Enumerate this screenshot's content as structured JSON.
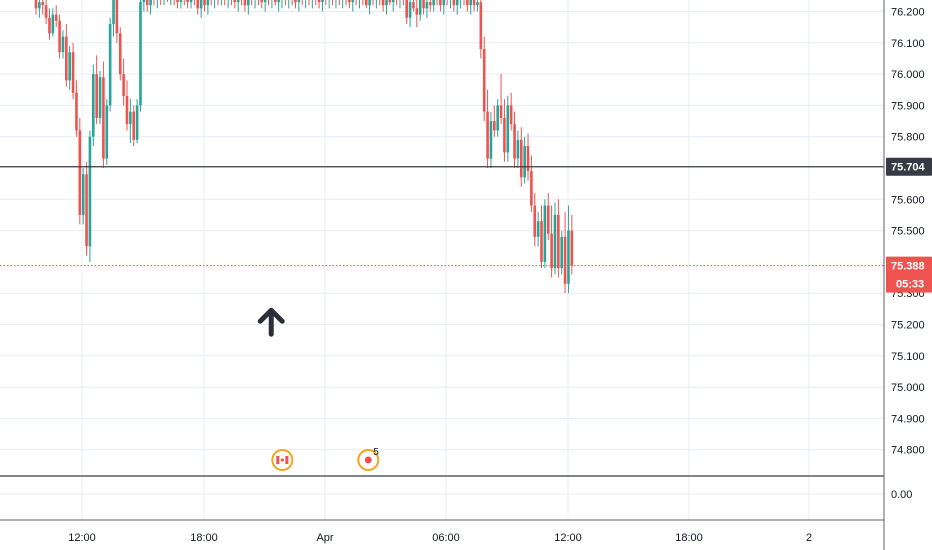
{
  "chart_data": {
    "type": "candlestick",
    "y_ticks": [
      "76.200",
      "76.100",
      "76.000",
      "75.900",
      "75.800",
      "75.600",
      "75.500",
      "75.300",
      "75.200",
      "75.100",
      "75.000",
      "74.900",
      "74.800"
    ],
    "lower_pane_tick": "0.00",
    "x_ticks": [
      "12:00",
      "18:00",
      "Apr",
      "06:00",
      "12:00",
      "18:00",
      "2"
    ],
    "ylim": [
      74.72,
      76.24
    ],
    "grid": true,
    "horizontal_level": {
      "value": 75.704,
      "label": "75.704",
      "color": "#363a45"
    },
    "current_price": {
      "value": 75.388,
      "label": "75.388",
      "countdown": "05:33",
      "color": "#ef5350"
    },
    "colors": {
      "up": "#26a69a",
      "down": "#ef5350",
      "grid": "#e8eef6"
    },
    "annotation": {
      "type": "up-arrow",
      "x_slot": 69.8,
      "y_value": 75.22
    },
    "events": [
      {
        "x_slot": 73.1,
        "icon": "canada-flag-icon",
        "count": ""
      },
      {
        "x_slot": 98.6,
        "icon": "event-dot-icon",
        "count": "5"
      }
    ],
    "candles_ohlc": [
      [
        76.24,
        76.27,
        76.19,
        76.21
      ],
      [
        76.21,
        76.25,
        76.18,
        76.23
      ],
      [
        76.23,
        76.26,
        76.19,
        76.22
      ],
      [
        76.22,
        76.25,
        76.16,
        76.18
      ],
      [
        76.18,
        76.21,
        76.11,
        76.13
      ],
      [
        76.13,
        76.21,
        76.12,
        76.19
      ],
      [
        76.19,
        76.22,
        76.15,
        76.17
      ],
      [
        76.17,
        76.19,
        76.05,
        76.07
      ],
      [
        76.07,
        76.14,
        76.05,
        76.12
      ],
      [
        76.12,
        76.16,
        75.96,
        75.98
      ],
      [
        75.98,
        76.09,
        75.95,
        76.07
      ],
      [
        76.07,
        76.1,
        75.92,
        75.94
      ],
      [
        75.94,
        75.98,
        75.8,
        75.82
      ],
      [
        75.82,
        75.86,
        75.52,
        75.55
      ],
      [
        75.55,
        75.7,
        75.52,
        75.68
      ],
      [
        75.68,
        75.72,
        75.42,
        75.45
      ],
      [
        75.45,
        75.82,
        75.4,
        75.8
      ],
      [
        75.8,
        76.03,
        75.77,
        76.0
      ],
      [
        76.0,
        76.06,
        75.84,
        75.86
      ],
      [
        75.86,
        76.01,
        75.84,
        75.99
      ],
      [
        75.99,
        76.04,
        75.7,
        75.73
      ],
      [
        75.73,
        75.92,
        75.71,
        75.9
      ],
      [
        75.9,
        76.18,
        75.88,
        76.16
      ],
      [
        76.16,
        76.27,
        76.12,
        76.25
      ],
      [
        76.25,
        76.27,
        76.1,
        76.13
      ],
      [
        76.13,
        76.15,
        75.98,
        76.0
      ],
      [
        76.0,
        76.05,
        75.9,
        75.93
      ],
      [
        75.93,
        75.98,
        75.82,
        75.84
      ],
      [
        75.84,
        75.92,
        75.78,
        75.88
      ],
      [
        75.88,
        75.9,
        75.77,
        75.79
      ],
      [
        75.79,
        75.92,
        75.78,
        75.9
      ],
      [
        75.9,
        76.25,
        75.88,
        76.23
      ],
      [
        76.23,
        76.27,
        76.2,
        76.24
      ],
      [
        76.24,
        76.26,
        76.2,
        76.22
      ],
      [
        76.22,
        76.26,
        76.19,
        76.25
      ],
      [
        76.25,
        76.27,
        76.22,
        76.24
      ],
      [
        76.24,
        76.27,
        76.21,
        76.25
      ],
      [
        76.25,
        76.27,
        76.22,
        76.24
      ],
      [
        76.24,
        76.27,
        76.22,
        76.25
      ],
      [
        76.25,
        76.27,
        76.23,
        76.24
      ],
      [
        76.24,
        76.26,
        76.22,
        76.25
      ],
      [
        76.25,
        76.27,
        76.22,
        76.24
      ],
      [
        76.24,
        76.26,
        76.21,
        76.23
      ],
      [
        76.23,
        76.27,
        76.21,
        76.25
      ],
      [
        76.25,
        76.27,
        76.22,
        76.24
      ],
      [
        76.24,
        76.26,
        76.21,
        76.23
      ],
      [
        76.23,
        76.26,
        76.21,
        76.25
      ],
      [
        76.25,
        76.27,
        76.22,
        76.24
      ],
      [
        76.24,
        76.27,
        76.19,
        76.21
      ],
      [
        76.21,
        76.25,
        76.18,
        76.24
      ],
      [
        76.24,
        76.27,
        76.2,
        76.22
      ],
      [
        76.22,
        76.26,
        76.19,
        76.25
      ],
      [
        76.25,
        76.27,
        76.22,
        76.24
      ],
      [
        76.24,
        76.27,
        76.21,
        76.25
      ],
      [
        76.25,
        76.27,
        76.22,
        76.24
      ],
      [
        76.24,
        76.27,
        76.22,
        76.26
      ],
      [
        76.26,
        76.27,
        76.22,
        76.24
      ],
      [
        76.24,
        76.27,
        76.21,
        76.25
      ],
      [
        76.25,
        76.27,
        76.22,
        76.24
      ],
      [
        76.24,
        76.27,
        76.21,
        76.23
      ],
      [
        76.23,
        76.26,
        76.2,
        76.25
      ],
      [
        76.25,
        76.27,
        76.22,
        76.24
      ],
      [
        76.24,
        76.27,
        76.2,
        76.22
      ],
      [
        76.22,
        76.26,
        76.19,
        76.25
      ],
      [
        76.25,
        76.27,
        76.22,
        76.24
      ],
      [
        76.24,
        76.26,
        76.21,
        76.25
      ],
      [
        76.25,
        76.27,
        76.22,
        76.24
      ],
      [
        76.24,
        76.27,
        76.21,
        76.23
      ],
      [
        76.23,
        76.26,
        76.2,
        76.25
      ],
      [
        76.25,
        76.27,
        76.22,
        76.24
      ],
      [
        76.24,
        76.27,
        76.21,
        76.25
      ],
      [
        76.25,
        76.27,
        76.22,
        76.23
      ],
      [
        76.23,
        76.26,
        76.2,
        76.24
      ],
      [
        76.24,
        76.27,
        76.21,
        76.25
      ],
      [
        76.25,
        76.27,
        76.22,
        76.24
      ],
      [
        76.24,
        76.26,
        76.21,
        76.25
      ],
      [
        76.25,
        76.27,
        76.22,
        76.24
      ],
      [
        76.24,
        76.27,
        76.21,
        76.23
      ],
      [
        76.23,
        76.27,
        76.2,
        76.25
      ],
      [
        76.25,
        76.27,
        76.22,
        76.24
      ],
      [
        76.24,
        76.27,
        76.21,
        76.25
      ],
      [
        76.25,
        76.27,
        76.22,
        76.24
      ],
      [
        76.24,
        76.26,
        76.21,
        76.25
      ],
      [
        76.25,
        76.27,
        76.22,
        76.24
      ],
      [
        76.24,
        76.27,
        76.21,
        76.23
      ],
      [
        76.23,
        76.26,
        76.2,
        76.25
      ],
      [
        76.25,
        76.27,
        76.22,
        76.24
      ],
      [
        76.24,
        76.27,
        76.21,
        76.25
      ],
      [
        76.25,
        76.27,
        76.22,
        76.24
      ],
      [
        76.24,
        76.27,
        76.21,
        76.25
      ],
      [
        76.25,
        76.27,
        76.22,
        76.24
      ],
      [
        76.24,
        76.26,
        76.21,
        76.25
      ],
      [
        76.25,
        76.27,
        76.22,
        76.24
      ],
      [
        76.24,
        76.27,
        76.21,
        76.23
      ],
      [
        76.23,
        76.26,
        76.2,
        76.25
      ],
      [
        76.25,
        76.27,
        76.22,
        76.24
      ],
      [
        76.24,
        76.27,
        76.21,
        76.25
      ],
      [
        76.25,
        76.27,
        76.22,
        76.24
      ],
      [
        76.24,
        76.27,
        76.21,
        76.22
      ],
      [
        76.22,
        76.26,
        76.19,
        76.25
      ],
      [
        76.25,
        76.27,
        76.22,
        76.24
      ],
      [
        76.24,
        76.27,
        76.21,
        76.25
      ],
      [
        76.25,
        76.27,
        76.22,
        76.24
      ],
      [
        76.24,
        76.27,
        76.2,
        76.22
      ],
      [
        76.22,
        76.26,
        76.19,
        76.25
      ],
      [
        76.25,
        76.27,
        76.22,
        76.23
      ],
      [
        76.23,
        76.27,
        76.2,
        76.25
      ],
      [
        76.25,
        76.27,
        76.22,
        76.24
      ],
      [
        76.24,
        76.26,
        76.21,
        76.25
      ],
      [
        76.25,
        76.27,
        76.22,
        76.24
      ],
      [
        76.24,
        76.27,
        76.16,
        76.18
      ],
      [
        76.18,
        76.25,
        76.15,
        76.23
      ],
      [
        76.23,
        76.26,
        76.2,
        76.21
      ],
      [
        76.21,
        76.24,
        76.15,
        76.19
      ],
      [
        76.19,
        76.26,
        76.17,
        76.24
      ],
      [
        76.24,
        76.26,
        76.19,
        76.21
      ],
      [
        76.21,
        76.25,
        76.18,
        76.23
      ],
      [
        76.23,
        76.26,
        76.2,
        76.22
      ],
      [
        76.22,
        76.27,
        76.2,
        76.25
      ],
      [
        76.25,
        76.27,
        76.22,
        76.24
      ],
      [
        76.24,
        76.27,
        76.2,
        76.22
      ],
      [
        76.22,
        76.26,
        76.19,
        76.25
      ],
      [
        76.25,
        76.27,
        76.22,
        76.24
      ],
      [
        76.24,
        76.27,
        76.21,
        76.25
      ],
      [
        76.25,
        76.27,
        76.2,
        76.22
      ],
      [
        76.22,
        76.26,
        76.19,
        76.24
      ],
      [
        76.24,
        76.27,
        76.21,
        76.25
      ],
      [
        76.25,
        76.27,
        76.22,
        76.24
      ],
      [
        76.24,
        76.27,
        76.2,
        76.22
      ],
      [
        76.22,
        76.26,
        76.19,
        76.25
      ],
      [
        76.25,
        76.27,
        76.2,
        76.22
      ],
      [
        76.22,
        76.25,
        76.2,
        76.23
      ],
      [
        76.23,
        76.27,
        76.05,
        76.08
      ],
      [
        76.08,
        76.12,
        75.85,
        75.88
      ],
      [
        75.88,
        75.95,
        75.7,
        75.73
      ],
      [
        75.73,
        75.88,
        75.7,
        75.85
      ],
      [
        75.85,
        75.9,
        75.8,
        75.82
      ],
      [
        75.82,
        75.92,
        75.8,
        75.9
      ],
      [
        75.9,
        76.0,
        75.84,
        75.86
      ],
      [
        75.86,
        75.92,
        75.72,
        75.75
      ],
      [
        75.75,
        75.93,
        75.72,
        75.9
      ],
      [
        75.9,
        75.94,
        75.82,
        75.84
      ],
      [
        75.84,
        75.88,
        75.7,
        75.73
      ],
      [
        75.73,
        75.82,
        75.7,
        75.79
      ],
      [
        75.79,
        75.83,
        75.64,
        75.67
      ],
      [
        75.67,
        75.8,
        75.65,
        75.77
      ],
      [
        75.77,
        75.81,
        75.66,
        75.69
      ],
      [
        75.69,
        75.74,
        75.56,
        75.58
      ],
      [
        75.58,
        75.62,
        75.45,
        75.48
      ],
      [
        75.48,
        75.56,
        75.45,
        75.53
      ],
      [
        75.53,
        75.58,
        75.38,
        75.4
      ],
      [
        75.4,
        75.6,
        75.38,
        75.58
      ],
      [
        75.58,
        75.62,
        75.47,
        75.49
      ],
      [
        75.49,
        75.58,
        75.35,
        75.38
      ],
      [
        75.38,
        75.59,
        75.36,
        75.55
      ],
      [
        75.55,
        75.6,
        75.35,
        75.38
      ],
      [
        75.38,
        75.5,
        75.36,
        75.48
      ],
      [
        75.48,
        75.56,
        75.3,
        75.33
      ],
      [
        75.33,
        75.58,
        75.3,
        75.5
      ],
      [
        75.5,
        75.55,
        75.36,
        75.388
      ]
    ]
  }
}
